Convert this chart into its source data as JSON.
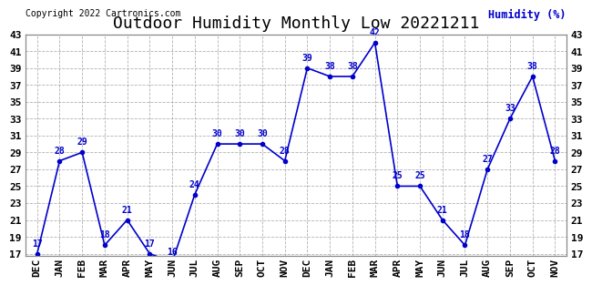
{
  "title": "Outdoor Humidity Monthly Low 20221211",
  "copyright": "Copyright 2022 Cartronics.com",
  "ylabel": "Humidity (%)",
  "x_labels": [
    "DEC",
    "JAN",
    "FEB",
    "MAR",
    "APR",
    "MAY",
    "JUN",
    "JUL",
    "AUG",
    "SEP",
    "OCT",
    "NOV",
    "DEC",
    "JAN",
    "FEB",
    "MAR",
    "APR",
    "MAY",
    "JUN",
    "JUL",
    "AUG",
    "SEP",
    "OCT",
    "NOV"
  ],
  "values": [
    17,
    28,
    29,
    18,
    21,
    17,
    16,
    24,
    30,
    30,
    30,
    28,
    39,
    38,
    38,
    42,
    25,
    25,
    21,
    18,
    27,
    33,
    38,
    28
  ],
  "line_color": "#0000cc",
  "marker_color": "#0000cc",
  "background_color": "#ffffff",
  "grid_color": "#aaaaaa",
  "title_color": "#000000",
  "label_color": "#0000cc",
  "ylim_min": 17,
  "ylim_max": 43,
  "ytick_step": 2,
  "title_fontsize": 13,
  "axis_label_fontsize": 8,
  "data_label_fontsize": 7
}
